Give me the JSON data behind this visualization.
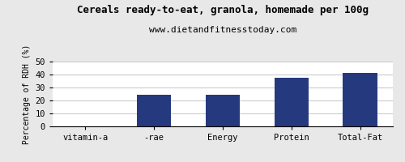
{
  "title": "Cereals ready-to-eat, granola, homemade per 100g",
  "subtitle": "www.dietandfitnesstoday.com",
  "categories": [
    "vitamin-a",
    "-rae",
    "Energy",
    "Protein",
    "Total-Fat"
  ],
  "values": [
    0,
    24.5,
    24.5,
    37.5,
    41.5
  ],
  "bar_color": "#253a7e",
  "ylabel": "Percentage of RDH (%)",
  "ylim": [
    0,
    50
  ],
  "yticks": [
    0,
    10,
    20,
    30,
    40,
    50
  ],
  "background_color": "#e8e8e8",
  "plot_bg_color": "#ffffff",
  "title_fontsize": 9,
  "subtitle_fontsize": 8,
  "ylabel_fontsize": 7,
  "tick_fontsize": 7.5
}
